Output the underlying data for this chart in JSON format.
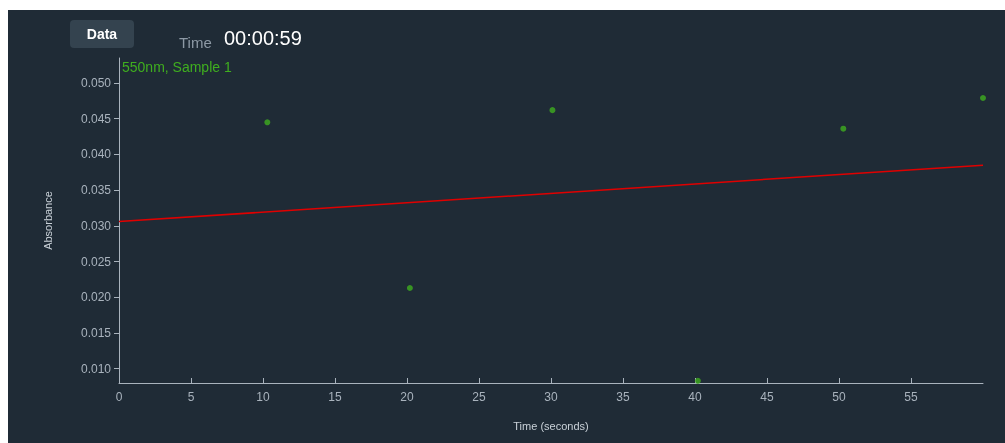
{
  "chart_data": {
    "type": "scatter",
    "xlabel": "Time (seconds)",
    "ylabel": "Absorbance",
    "annotations": [
      "Data",
      "Time",
      "00:00:59"
    ],
    "xlim": [
      0,
      60
    ],
    "xticks": [
      0,
      5,
      10,
      15,
      20,
      25,
      30,
      35,
      40,
      45,
      50,
      55
    ],
    "ylim": [
      0.008,
      0.0535
    ],
    "yticks": [
      {
        "value": 0.01,
        "label": "0.010"
      },
      {
        "value": 0.015,
        "label": "0.015"
      },
      {
        "value": 0.02,
        "label": "0.020"
      },
      {
        "value": 0.025,
        "label": "0.025"
      },
      {
        "value": 0.03,
        "label": "0.030"
      },
      {
        "value": 0.035,
        "label": "0.035"
      },
      {
        "value": 0.04,
        "label": "0.040"
      },
      {
        "value": 0.045,
        "label": "0.045"
      },
      {
        "value": 0.05,
        "label": "0.050"
      }
    ],
    "grid": false,
    "series": [
      {
        "name": "550nm, Sample 1",
        "marker": "circle",
        "color": "#3fae1f",
        "x": [
          10.3,
          20.2,
          30.1,
          40.2,
          50.3,
          60
        ],
        "values": [
          0.0445,
          0.0213,
          0.0462,
          0.0083,
          0.0436,
          0.0479
        ]
      },
      {
        "type": "line",
        "color": "#e00000",
        "line_style": "solid",
        "x": [
          0,
          60
        ],
        "values": [
          0.0306,
          0.0385
        ]
      }
    ]
  }
}
